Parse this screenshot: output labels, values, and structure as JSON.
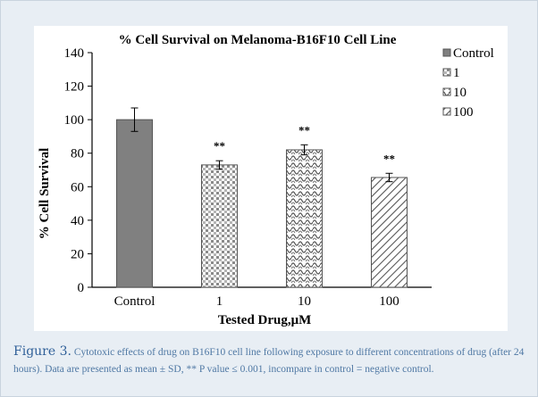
{
  "figure": {
    "caption_label": "Figure 3.",
    "caption_text": "Cytotoxic effects of drug on B16F10 cell line following exposure to different concentrations of drug (after 24 hours). Data are presented as mean ± SD, ** P value ≤ 0.001, incompare in control = negative control."
  },
  "chart_data": {
    "type": "bar",
    "title": "% Cell Survival on Melanoma-B16F10 Cell Line",
    "xlabel": "Tested Drug,μM",
    "ylabel": "% Cell Survival",
    "ylim": [
      0,
      140
    ],
    "yticks": [
      0,
      20,
      40,
      60,
      80,
      100,
      120,
      140
    ],
    "categories": [
      "Control",
      "1",
      "10",
      "100"
    ],
    "values": [
      100,
      73,
      82,
      65.5
    ],
    "errors": [
      7,
      2.5,
      3,
      2.5
    ],
    "significance": [
      "",
      "**",
      "**",
      "**"
    ],
    "legend": [
      "Control",
      "1",
      "10",
      "100"
    ],
    "legend_position": "top-right",
    "grid": false,
    "colors": {
      "control": "#808080",
      "bar_pattern": "#707070",
      "bar_fill": "#ffffff",
      "axis": "#000000"
    }
  }
}
